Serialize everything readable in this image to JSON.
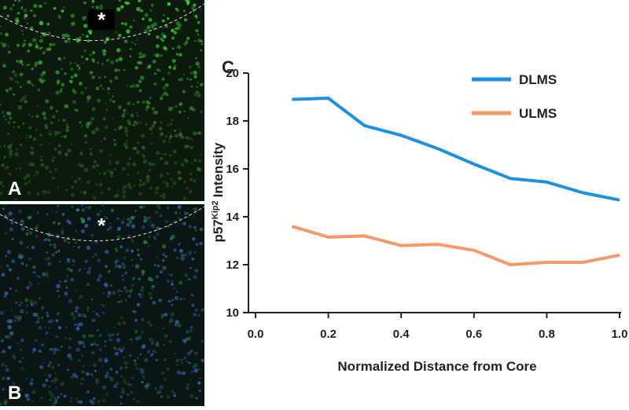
{
  "panels": [
    {
      "label": "A",
      "marker": "*"
    },
    {
      "label": "B",
      "marker": "*"
    }
  ],
  "chart_data": {
    "type": "line",
    "panel_label": "C",
    "x_label": "Normalized Distance from Core",
    "y_label": {
      "text": "p57",
      "sup": "Kip2",
      "rest": "Intensity"
    },
    "x": [
      0.1,
      0.2,
      0.3,
      0.4,
      0.5,
      0.6,
      0.7,
      0.8,
      0.9,
      1.0
    ],
    "series": [
      {
        "name": "DLMS",
        "color": "#1f8fe0",
        "values": [
          18.9,
          18.95,
          17.8,
          17.4,
          16.85,
          16.2,
          15.6,
          15.45,
          15.0,
          14.7
        ]
      },
      {
        "name": "ULMS",
        "color": "#f5996a",
        "values": [
          13.6,
          13.15,
          13.2,
          12.8,
          12.85,
          12.6,
          12.0,
          12.1,
          12.1,
          12.4
        ]
      }
    ],
    "xlim": [
      0,
      1
    ],
    "xticks": [
      {
        "value": 0,
        "label": "0.0"
      },
      0.2,
      0.4,
      0.6,
      0.8,
      {
        "value": 1,
        "label": "1.0"
      }
    ],
    "ylim": [
      10,
      20
    ],
    "yticks": [
      10,
      12,
      14,
      16,
      18,
      20
    ],
    "grid": false,
    "legend": "upper right"
  }
}
